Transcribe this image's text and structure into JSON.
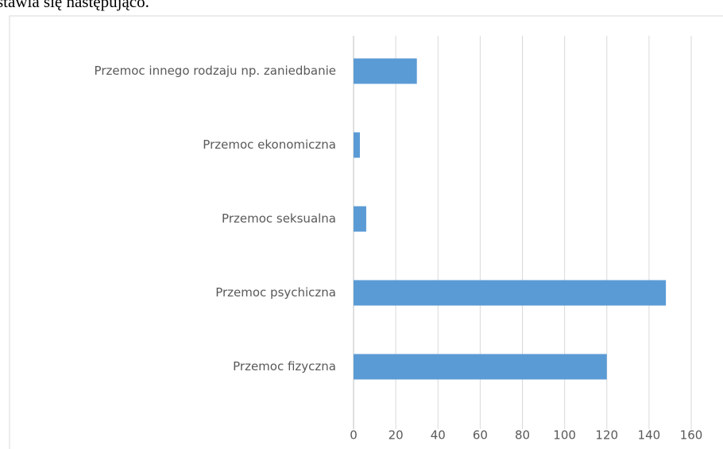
{
  "header_text": "stawia się następująco.",
  "chart_data": {
    "type": "hbar",
    "categories": [
      "Przemoc fizyczna",
      "Przemoc psychiczna",
      "Przemoc seksualna",
      "Przemoc ekonomiczna",
      "Przemoc innego rodzaju np. zaniedbanie"
    ],
    "values": [
      120,
      148,
      6,
      3,
      30
    ],
    "color": "#5b9bd5",
    "xlim": [
      0,
      160
    ],
    "xticks": [
      0,
      20,
      40,
      60,
      80,
      100,
      120,
      140,
      160
    ],
    "grid": true
  }
}
